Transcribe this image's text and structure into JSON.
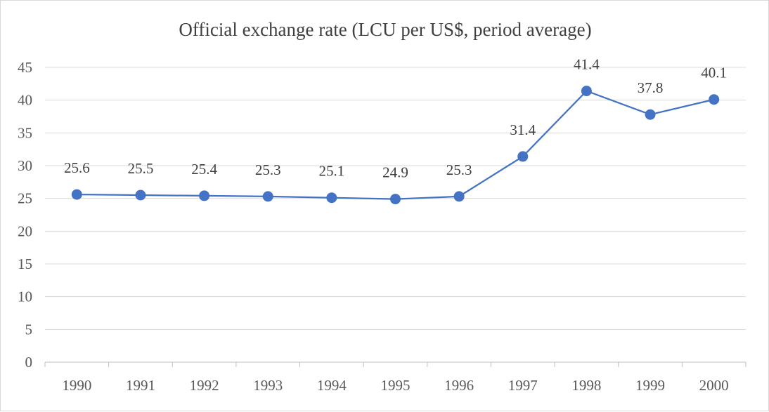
{
  "chart_data": {
    "type": "line",
    "title": "Official exchange rate (LCU per US$, period average)",
    "categories": [
      "1990",
      "1991",
      "1992",
      "1993",
      "1994",
      "1995",
      "1996",
      "1997",
      "1998",
      "1999",
      "2000"
    ],
    "series": [
      {
        "name": "Official exchange rate (LCU per US$, period average)",
        "values": [
          25.6,
          25.5,
          25.4,
          25.3,
          25.1,
          24.9,
          25.3,
          31.4,
          41.4,
          37.8,
          40.1
        ],
        "labels": [
          "25.6",
          "25.5",
          "25.4",
          "25.3",
          "25.1",
          "24.9",
          "25.3",
          "31.4",
          "41.4",
          "37.8",
          "40.1"
        ],
        "color": "#4472c4"
      }
    ],
    "ylim": [
      0,
      45
    ],
    "yticks": [
      "0",
      "5",
      "10",
      "15",
      "20",
      "25",
      "30",
      "35",
      "40",
      "45"
    ],
    "xlabel": "",
    "ylabel": "",
    "grid": true,
    "legend": "none"
  }
}
